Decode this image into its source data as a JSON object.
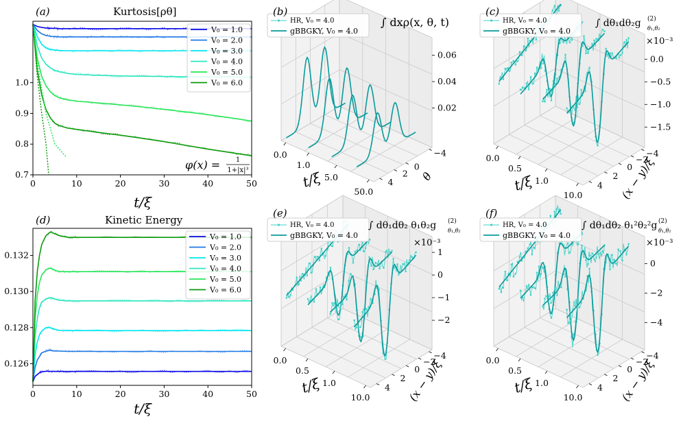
{
  "colors": {
    "series": [
      "#0a0ae6",
      "#1e78e6",
      "#00e6f0",
      "#28e6be",
      "#28e65a",
      "#0a9a0a"
    ],
    "hr": "#40d2c8",
    "gbbgky": "#0a9a9a"
  },
  "chart_data": [
    {
      "panel": "(a)",
      "type": "line",
      "title": "Kurtosis[ρθ]",
      "xlabel": "t/ξ",
      "ylabel": "",
      "xlim": [
        0,
        50
      ],
      "ylim": [
        0.7,
        1.2
      ],
      "x_ticks": [
        "0",
        "10",
        "20",
        "30",
        "40",
        "50"
      ],
      "y_ticks": [
        "0.7",
        "0.8",
        "0.9",
        "1.0"
      ],
      "annotation": "φ(x) = 1/(1+|x|³)",
      "legend": [
        "V0 = 1.0",
        "V0 = 2.0",
        "V0 = 3.0",
        "V0 = 4.0",
        "V0 = 5.0",
        "V0 = 6.0"
      ],
      "x": [
        0,
        1,
        2,
        3,
        4,
        5,
        6,
        8,
        10,
        15,
        20,
        25,
        30,
        35,
        40,
        45,
        50
      ],
      "series": [
        {
          "name": "V0 = 1.0",
          "values": [
            1.19,
            1.183,
            1.18,
            1.178,
            1.177,
            1.177,
            1.176,
            1.176,
            1.176,
            1.176,
            1.176,
            1.176,
            1.176,
            1.176,
            1.176,
            1.176,
            1.176
          ]
        },
        {
          "name": "V0 = 2.0",
          "values": [
            1.19,
            1.17,
            1.159,
            1.154,
            1.151,
            1.15,
            1.149,
            1.149,
            1.149,
            1.149,
            1.149,
            1.149,
            1.149,
            1.149,
            1.149,
            1.149,
            1.149
          ]
        },
        {
          "name": "V0 = 3.0",
          "values": [
            1.19,
            1.15,
            1.125,
            1.113,
            1.108,
            1.106,
            1.105,
            1.104,
            1.104,
            1.104,
            1.104,
            1.104,
            1.104,
            1.104,
            1.104,
            1.104,
            1.104
          ]
        },
        {
          "name": "V0 = 4.0",
          "values": [
            1.19,
            1.12,
            1.08,
            1.06,
            1.048,
            1.04,
            1.036,
            1.03,
            1.027,
            1.024,
            1.022,
            1.021,
            1.02,
            1.019,
            1.019,
            1.019,
            1.018
          ]
        },
        {
          "name": "V0 = 5.0",
          "values": [
            1.19,
            1.08,
            1.02,
            0.99,
            0.97,
            0.958,
            0.951,
            0.944,
            0.94,
            0.934,
            0.928,
            0.921,
            0.913,
            0.905,
            0.896,
            0.886,
            0.875
          ]
        },
        {
          "name": "V0 = 6.0",
          "values": [
            1.19,
            1.04,
            0.96,
            0.912,
            0.885,
            0.868,
            0.86,
            0.852,
            0.848,
            0.838,
            0.829,
            0.819,
            0.808,
            0.796,
            0.784,
            0.773,
            0.762
          ]
        }
      ]
    },
    {
      "panel": "(b)",
      "type": "line3d",
      "title": "∫dx ρ(x,θ,t)",
      "xlabel": "t/ξ",
      "ylabel": "θ",
      "x_ticks": [
        "0.0",
        "1.0",
        "5.0",
        "50.0"
      ],
      "y_ticks": [
        "−4",
        "0",
        "2",
        "4"
      ],
      "z_ticks": [
        "0.02",
        "0.04",
        "0.06"
      ],
      "legend": [
        "HR, V0 = 4.0",
        "gBBGKY, V0 = 4.0"
      ]
    },
    {
      "panel": "(c)",
      "type": "line3d",
      "title": "∫dθ1dθ2 g(2)θ1,θ2",
      "xlabel": "t/ξ",
      "ylabel": "(x−y)/ξ",
      "zscale": "×10−3",
      "x_ticks": [
        "0.0",
        "0.5",
        "1.0",
        "10.0"
      ],
      "y_ticks": [
        "−4",
        "−2",
        "0",
        "2",
        "4"
      ],
      "z_ticks": [
        "0.0",
        "−0.5",
        "−1.0",
        "−1.5"
      ],
      "legend": [
        "HR, V0 = 4.0",
        "gBBGKY, V0 = 4.0"
      ]
    },
    {
      "panel": "(d)",
      "type": "line",
      "title": "Kinetic Energy",
      "xlabel": "t/ξ",
      "ylabel": "",
      "xlim": [
        0,
        50
      ],
      "ylim": [
        0.1248,
        0.1335
      ],
      "x_ticks": [
        "0",
        "10",
        "20",
        "30",
        "40",
        "50"
      ],
      "y_ticks": [
        "0.126",
        "0.128",
        "0.130",
        "0.132"
      ],
      "legend": [
        "V0 = 1.0",
        "V0 = 2.0",
        "V0 = 3.0",
        "V0 = 4.0",
        "V0 = 5.0",
        "V0 = 6.0"
      ],
      "x": [
        0,
        0.5,
        1,
        1.5,
        2,
        3,
        4,
        5,
        6,
        8,
        10,
        20,
        30,
        40,
        50
      ],
      "series": [
        {
          "name": "V0 = 1.0",
          "values": [
            0.125,
            0.1253,
            0.1254,
            0.1255,
            0.12555,
            0.12558,
            0.12558,
            0.12557,
            0.12557,
            0.12557,
            0.12557,
            0.12557,
            0.12557,
            0.12557,
            0.12557
          ]
        },
        {
          "name": "V0 = 2.0",
          "values": [
            0.125,
            0.1258,
            0.1262,
            0.1264,
            0.1266,
            0.1267,
            0.12675,
            0.1267,
            0.1267,
            0.12668,
            0.12668,
            0.12668,
            0.12668,
            0.12668,
            0.12668
          ]
        },
        {
          "name": "V0 = 3.0",
          "values": [
            0.125,
            0.1265,
            0.1272,
            0.1276,
            0.1278,
            0.128,
            0.128,
            0.1279,
            0.12785,
            0.12783,
            0.12783,
            0.12783,
            0.12783,
            0.12783,
            0.12783
          ]
        },
        {
          "name": "V0 = 4.0",
          "values": [
            0.125,
            0.1275,
            0.1285,
            0.1291,
            0.1294,
            0.1296,
            0.12965,
            0.12958,
            0.12952,
            0.12948,
            0.12948,
            0.12948,
            0.12948,
            0.12948,
            0.12948
          ]
        },
        {
          "name": "V0 = 5.0",
          "values": [
            0.125,
            0.1285,
            0.1298,
            0.1305,
            0.1309,
            0.1312,
            0.1313,
            0.13118,
            0.1311,
            0.1311,
            0.1311,
            0.1311,
            0.1311,
            0.1311,
            0.1311
          ]
        },
        {
          "name": "V0 = 6.0",
          "values": [
            0.125,
            0.1295,
            0.1311,
            0.132,
            0.1326,
            0.1331,
            0.1333,
            0.1332,
            0.1331,
            0.133,
            0.133,
            0.133,
            0.133,
            0.133,
            0.133
          ]
        }
      ]
    },
    {
      "panel": "(e)",
      "type": "line3d",
      "title": "∫dθ1dθ2 θ1θ2 g(2)θ1,θ2",
      "xlabel": "t/ξ",
      "ylabel": "(x−y)/ξ",
      "zscale": "×10−3",
      "x_ticks": [
        "0.0",
        "0.5",
        "1.0",
        "10.0"
      ],
      "y_ticks": [
        "−4",
        "−2",
        "0",
        "2",
        "4"
      ],
      "z_ticks": [
        "1",
        "0",
        "−1",
        "−2"
      ],
      "legend": [
        "HR, V0 = 4.0",
        "gBBGKY, V0 = 4.0"
      ]
    },
    {
      "panel": "(f)",
      "type": "line3d",
      "title": "∫dθ1dθ2 θ1²θ2² g(2)θ1,θ2",
      "xlabel": "t/ξ",
      "ylabel": "(x−y)/ξ",
      "zscale": "×10−3",
      "x_ticks": [
        "0.0",
        "0.5",
        "1.0",
        "10.0"
      ],
      "y_ticks": [
        "−4",
        "−2",
        "0",
        "2",
        "4"
      ],
      "z_ticks": [
        "0",
        "−2",
        "−4"
      ],
      "legend": [
        "HR, V0 = 4.0",
        "gBBGKY, V0 = 4.0"
      ]
    }
  ],
  "text": {
    "a_label": "(a)",
    "a_title": "Kurtosis[ρθ]",
    "a_phi": "φ(x) =",
    "a_phi_num": "1",
    "a_phi_den": "1+|x|³",
    "b_label": "(b)",
    "b_title": "∫ dxρ(x, θ, t)",
    "c_label": "(c)",
    "c_title": "∫ dθ₁dθ₂g",
    "c_sup": "(2)",
    "c_sub": "θ₁,θ₂",
    "d_label": "(d)",
    "d_title": "Kinetic Energy",
    "e_label": "(e)",
    "e_title": "∫ dθ₁dθ₂ θ₁θ₂g",
    "e_sup": "(2)",
    "e_sub": "θ₁,θ₂",
    "f_label": "(f)",
    "f_title": "∫ dθ₁dθ₂ θ₁²θ₂²g",
    "f_sup": "(2)",
    "f_sub": "θ₁,θ₂",
    "scale": "×10⁻³",
    "legend_hr": "HR, V₀ = 4.0",
    "legend_gb": "gBBGKY, V₀ = 4.0",
    "xlab": "t/ξ",
    "ylab_theta": "θ",
    "ylab_xy": "(x − y)/ξ",
    "legend_v": [
      "V₀ = 1.0",
      "V₀ = 2.0",
      "V₀ = 3.0",
      "V₀ = 4.0",
      "V₀ = 5.0",
      "V₀ = 6.0"
    ],
    "a_xticks": [
      "0",
      "10",
      "20",
      "30",
      "40",
      "50"
    ],
    "a_yticks": [
      "0.7",
      "0.8",
      "0.9",
      "1.0"
    ],
    "d_yticks": [
      "0.126",
      "0.128",
      "0.130",
      "0.132"
    ],
    "b_xticks": [
      "0.0",
      "1.0",
      "5.0",
      "50.0"
    ],
    "b_yticks": [
      "−4",
      "0",
      "2",
      "4"
    ],
    "b_zticks": [
      "0.06",
      "0.04",
      "0.02"
    ],
    "c_xticks": [
      "0.0",
      "0.5",
      "1.0",
      "10.0"
    ],
    "c_yticks": [
      "−4",
      "−2",
      "0",
      "2",
      "4"
    ],
    "c_zticks": [
      "0.0",
      "−0.5",
      "−1.0",
      "−1.5"
    ],
    "e_zticks": [
      "1",
      "0",
      "−1",
      "−2"
    ],
    "f_zticks": [
      "0",
      "−2",
      "−4"
    ]
  }
}
